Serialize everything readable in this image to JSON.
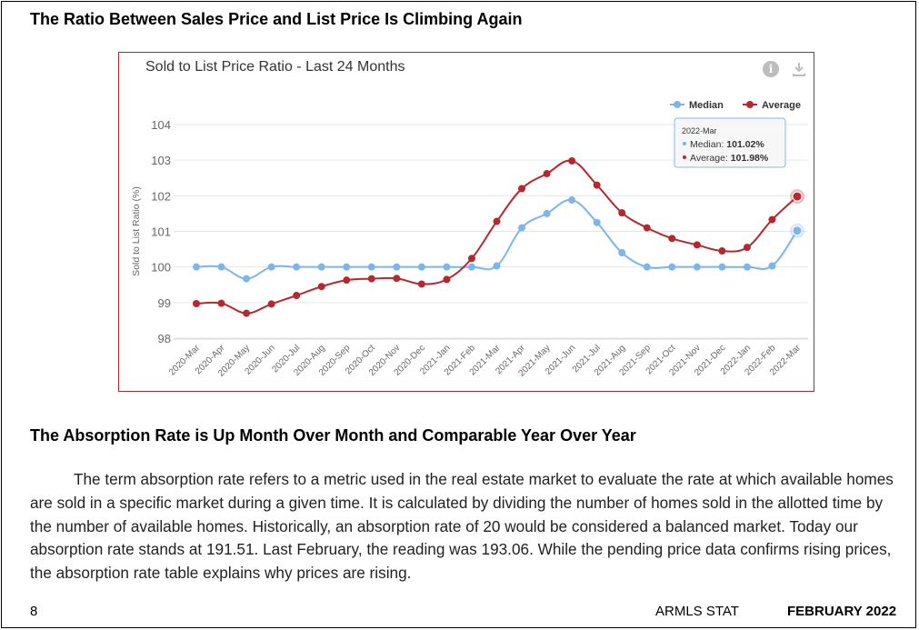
{
  "section1": {
    "heading": "The Ratio Between Sales Price and List Price Is Climbing Again"
  },
  "chart_data": {
    "type": "line",
    "title": "Sold to List Price Ratio - Last 24 Months",
    "ylabel": "Sold to List Ratio (%)",
    "xlabel": "",
    "ylim": [
      98,
      104
    ],
    "yticks": [
      98,
      99,
      100,
      101,
      102,
      103,
      104
    ],
    "grid": true,
    "legend_position": "top-right",
    "categories": [
      "2020-Mar",
      "2020-Apr",
      "2020-May",
      "2020-Jun",
      "2020-Jul",
      "2020-Aug",
      "2020-Sep",
      "2020-Oct",
      "2020-Nov",
      "2020-Dec",
      "2021-Jan",
      "2021-Feb",
      "2021-Mar",
      "2021-Apr",
      "2021-May",
      "2021-Jun",
      "2021-Jul",
      "2021-Aug",
      "2021-Sep",
      "2021-Oct",
      "2021-Nov",
      "2021-Dec",
      "2022-Jan",
      "2022-Feb",
      "2022-Mar"
    ],
    "series": [
      {
        "name": "Median",
        "color": "#7cb5ec",
        "values": [
          100,
          100,
          99.67,
          100,
          100,
          100,
          100,
          100,
          100,
          100,
          100,
          100,
          100.03,
          101.1,
          101.5,
          101.88,
          101.25,
          100.4,
          100,
          100,
          100,
          100,
          100,
          100.03,
          101.02
        ]
      },
      {
        "name": "Average",
        "color": "#b5282e",
        "values": [
          98.97,
          98.98,
          98.7,
          98.96,
          99.2,
          99.45,
          99.63,
          99.67,
          99.68,
          99.52,
          99.65,
          100.24,
          101.28,
          102.2,
          102.62,
          102.98,
          102.3,
          101.52,
          101.1,
          100.8,
          100.62,
          100.45,
          100.55,
          101.33,
          101.98
        ]
      }
    ],
    "tooltip": {
      "category": "2022-Mar",
      "median_label": "Median: ",
      "median_value": "101.02%",
      "average_label": "Average: ",
      "average_value": "101.98%"
    }
  },
  "icons": {
    "info": "info-icon",
    "download": "download-icon"
  },
  "section2": {
    "heading": "The Absorption Rate is Up Month Over Month and Comparable Year Over Year",
    "paragraph": "The term absorption rate refers to a metric used in the real estate market to evaluate the rate at which available homes are sold in a specific market during a given time. It is calculated by dividing the number of homes sold in the allotted time by the number of available homes. Historically, an absorption rate of 20 would be considered a balanced market. Today our absorption rate stands at 191.51. Last February, the reading was 193.06. While the pending price data confirms rising prices, the absorption rate table explains why prices are rising."
  },
  "footer": {
    "page_number": "8",
    "publication": "ARMLS STAT",
    "date": "FEBRUARY 2022"
  }
}
